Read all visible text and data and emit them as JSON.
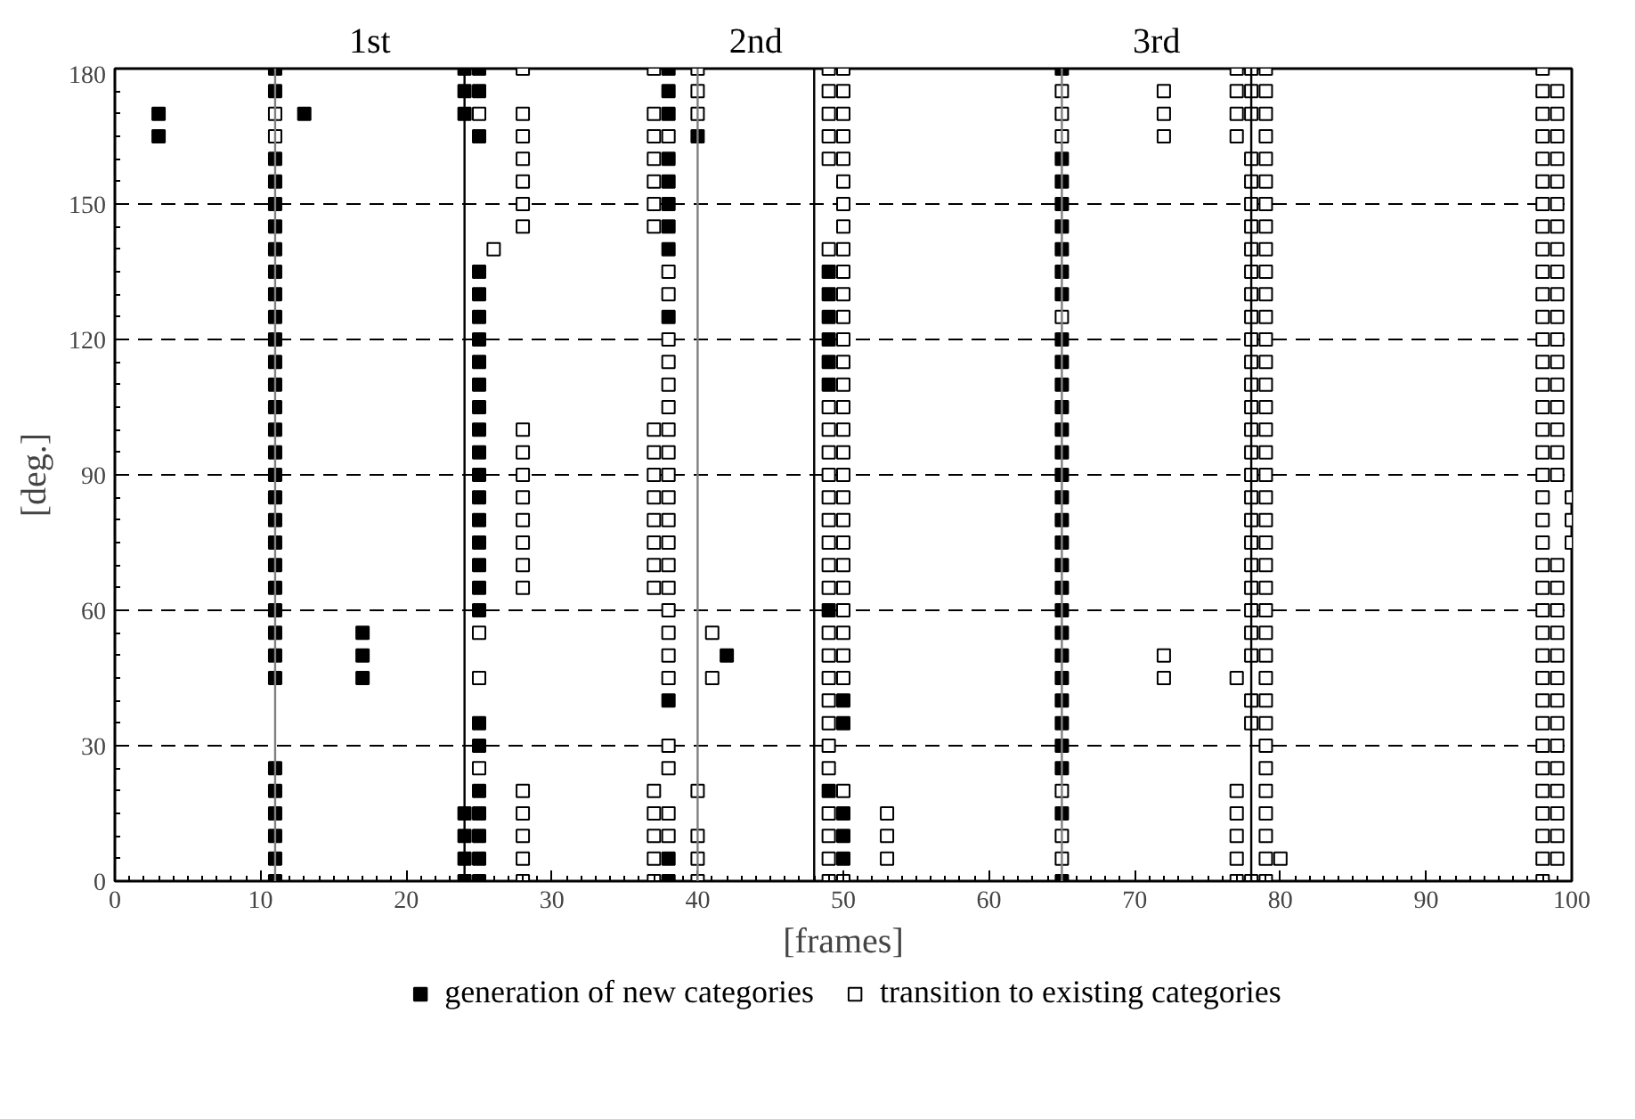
{
  "chart_data": {
    "type": "scatter",
    "xlabel": "[frames]",
    "ylabel": "[deg.]",
    "xlim": [
      0,
      100
    ],
    "ylim": [
      0,
      180
    ],
    "xticks": [
      0,
      10,
      20,
      30,
      40,
      50,
      60,
      70,
      80,
      90,
      100
    ],
    "yticks": [
      0,
      30,
      60,
      90,
      120,
      150,
      180
    ],
    "grid": "y",
    "legend": "bottom",
    "marker": "square",
    "annotations": [
      "1st",
      "2nd",
      "3rd"
    ],
    "ref_lines": [
      {
        "axis": "x",
        "value": 11,
        "label": null,
        "color": "#808080"
      },
      {
        "axis": "x",
        "value": 24,
        "label": null,
        "color": "#000000"
      },
      {
        "axis": "x",
        "value": 40,
        "label": null,
        "color": "#808080"
      },
      {
        "axis": "x",
        "value": 48,
        "label": null,
        "color": "#000000"
      },
      {
        "axis": "x",
        "value": 65,
        "label": null,
        "color": "#808080"
      },
      {
        "axis": "x",
        "value": 78,
        "label": null,
        "color": "#000000"
      }
    ],
    "series": [
      {
        "name": "generation of new categories",
        "color": "#000000",
        "x": [
          3,
          3,
          11,
          11,
          11,
          11,
          11,
          11,
          11,
          11,
          11,
          11,
          11,
          11,
          11,
          11,
          11,
          11,
          11,
          11,
          11,
          11,
          11,
          11,
          11,
          11,
          11,
          11,
          11,
          11,
          11,
          11,
          11,
          11,
          13,
          17,
          17,
          17,
          24,
          24,
          24,
          24,
          24,
          24,
          24,
          25,
          25,
          25,
          25,
          25,
          25,
          25,
          25,
          25,
          25,
          25,
          25,
          25,
          25,
          25,
          25,
          25,
          25,
          25,
          25,
          25,
          25,
          25,
          25,
          25,
          25,
          38,
          38,
          38,
          38,
          38,
          38,
          38,
          38,
          38,
          38,
          38,
          38,
          40,
          42,
          49,
          49,
          49,
          49,
          49,
          49,
          49,
          49,
          50,
          50,
          50,
          50,
          50,
          65,
          65,
          65,
          65,
          65,
          65,
          65,
          65,
          65,
          65,
          65,
          65,
          65,
          65,
          65,
          65,
          65,
          65,
          65,
          65,
          65,
          65,
          65,
          65,
          65,
          65,
          65,
          65,
          65,
          65
        ],
        "values": [
          170,
          165,
          180,
          175,
          160,
          155,
          150,
          145,
          140,
          135,
          130,
          125,
          120,
          115,
          110,
          105,
          100,
          95,
          90,
          85,
          80,
          75,
          70,
          65,
          60,
          55,
          50,
          45,
          25,
          20,
          15,
          10,
          5,
          0,
          170,
          55,
          50,
          45,
          180,
          175,
          170,
          15,
          10,
          5,
          0,
          180,
          175,
          165,
          135,
          130,
          125,
          120,
          115,
          110,
          105,
          100,
          95,
          90,
          85,
          80,
          75,
          70,
          65,
          60,
          35,
          30,
          20,
          15,
          10,
          5,
          0,
          180,
          175,
          170,
          160,
          155,
          150,
          145,
          140,
          125,
          40,
          5,
          0,
          165,
          50,
          135,
          130,
          125,
          120,
          115,
          110,
          60,
          20,
          40,
          35,
          15,
          10,
          5,
          180,
          160,
          155,
          150,
          145,
          140,
          135,
          130,
          120,
          115,
          110,
          105,
          100,
          95,
          90,
          85,
          80,
          75,
          70,
          65,
          60,
          55,
          50,
          45,
          40,
          35,
          30,
          25,
          15,
          0
        ]
      },
      {
        "name": "transition to existing categories",
        "color": "#000000",
        "x": [
          11,
          11,
          25,
          25,
          25,
          25,
          26,
          28,
          28,
          28,
          28,
          28,
          28,
          28,
          28,
          28,
          28,
          28,
          28,
          28,
          28,
          28,
          28,
          28,
          28,
          28,
          28,
          37,
          37,
          37,
          37,
          37,
          37,
          37,
          37,
          37,
          37,
          37,
          37,
          37,
          37,
          37,
          37,
          37,
          37,
          37,
          37,
          38,
          38,
          38,
          38,
          38,
          38,
          38,
          38,
          38,
          38,
          38,
          38,
          38,
          38,
          38,
          38,
          38,
          38,
          38,
          38,
          38,
          38,
          38,
          40,
          40,
          40,
          40,
          40,
          40,
          40,
          41,
          41,
          49,
          49,
          49,
          49,
          49,
          49,
          49,
          49,
          49,
          49,
          49,
          49,
          49,
          49,
          49,
          49,
          49,
          49,
          49,
          49,
          49,
          49,
          49,
          49,
          49,
          49,
          50,
          50,
          50,
          50,
          50,
          50,
          50,
          50,
          50,
          50,
          50,
          50,
          50,
          50,
          50,
          50,
          50,
          50,
          50,
          50,
          50,
          50,
          50,
          50,
          50,
          50,
          50,
          50,
          50,
          50,
          53,
          53,
          53,
          65,
          65,
          65,
          65,
          65,
          65,
          65,
          72,
          72,
          72,
          72,
          72,
          77,
          77,
          77,
          77,
          77,
          77,
          77,
          77,
          77,
          77,
          78,
          78,
          78,
          78,
          78,
          78,
          78,
          78,
          78,
          78,
          78,
          78,
          78,
          78,
          78,
          78,
          78,
          78,
          78,
          78,
          78,
          78,
          78,
          78,
          78,
          78,
          78,
          78,
          78,
          79,
          79,
          79,
          79,
          79,
          79,
          79,
          79,
          79,
          79,
          79,
          79,
          79,
          79,
          79,
          79,
          79,
          79,
          79,
          79,
          79,
          79,
          79,
          79,
          79,
          79,
          79,
          79,
          79,
          79,
          79,
          79,
          79,
          79,
          79,
          79,
          79,
          80,
          98,
          98,
          98,
          98,
          98,
          98,
          98,
          98,
          98,
          98,
          98,
          98,
          98,
          98,
          98,
          98,
          98,
          98,
          98,
          98,
          98,
          98,
          98,
          98,
          98,
          98,
          98,
          98,
          98,
          98,
          98,
          98,
          98,
          98,
          98,
          98,
          98,
          99,
          99,
          99,
          99,
          99,
          99,
          99,
          99,
          99,
          99,
          99,
          99,
          99,
          99,
          99,
          99,
          99,
          99,
          99,
          99,
          99,
          99,
          99,
          99,
          99,
          99,
          99,
          99,
          99,
          99,
          99,
          99,
          100,
          100,
          100
        ],
        "values": [
          170,
          165,
          170,
          55,
          45,
          25,
          140,
          180,
          170,
          165,
          160,
          155,
          150,
          145,
          100,
          95,
          90,
          85,
          80,
          75,
          70,
          65,
          20,
          15,
          10,
          5,
          0,
          180,
          170,
          165,
          160,
          155,
          150,
          145,
          100,
          95,
          90,
          85,
          80,
          75,
          70,
          65,
          20,
          15,
          10,
          5,
          0,
          165,
          135,
          130,
          120,
          115,
          110,
          105,
          100,
          95,
          90,
          85,
          80,
          75,
          70,
          65,
          60,
          55,
          50,
          45,
          30,
          25,
          15,
          10,
          180,
          175,
          170,
          20,
          10,
          5,
          0,
          55,
          45,
          180,
          175,
          170,
          165,
          160,
          140,
          105,
          100,
          95,
          90,
          85,
          80,
          75,
          70,
          65,
          55,
          50,
          45,
          40,
          35,
          30,
          25,
          15,
          10,
          5,
          0,
          180,
          175,
          170,
          165,
          160,
          155,
          150,
          145,
          140,
          135,
          130,
          125,
          120,
          115,
          110,
          105,
          100,
          95,
          90,
          85,
          80,
          75,
          70,
          65,
          60,
          55,
          50,
          45,
          20,
          0,
          15,
          10,
          5,
          175,
          170,
          165,
          125,
          20,
          10,
          5,
          175,
          170,
          165,
          50,
          45,
          180,
          175,
          170,
          165,
          45,
          20,
          15,
          10,
          5,
          0,
          180,
          175,
          170,
          160,
          155,
          150,
          145,
          140,
          135,
          130,
          125,
          120,
          115,
          110,
          105,
          100,
          95,
          90,
          85,
          80,
          75,
          70,
          65,
          60,
          55,
          50,
          40,
          35,
          0,
          180,
          175,
          170,
          165,
          160,
          155,
          150,
          145,
          140,
          135,
          130,
          125,
          120,
          115,
          110,
          105,
          100,
          95,
          90,
          85,
          80,
          75,
          70,
          65,
          60,
          55,
          50,
          45,
          40,
          35,
          30,
          25,
          20,
          15,
          10,
          5,
          0,
          5,
          180,
          175,
          170,
          165,
          160,
          155,
          150,
          145,
          140,
          135,
          130,
          125,
          120,
          115,
          110,
          105,
          100,
          95,
          90,
          85,
          80,
          75,
          70,
          65,
          60,
          55,
          50,
          45,
          40,
          35,
          30,
          25,
          20,
          15,
          10,
          5,
          0,
          175,
          170,
          165,
          160,
          155,
          150,
          145,
          140,
          135,
          130,
          125,
          120,
          115,
          110,
          105,
          100,
          95,
          90,
          70,
          65,
          60,
          55,
          50,
          45,
          40,
          35,
          30,
          25,
          20,
          15,
          10,
          5,
          85,
          80,
          75
        ]
      }
    ]
  }
}
